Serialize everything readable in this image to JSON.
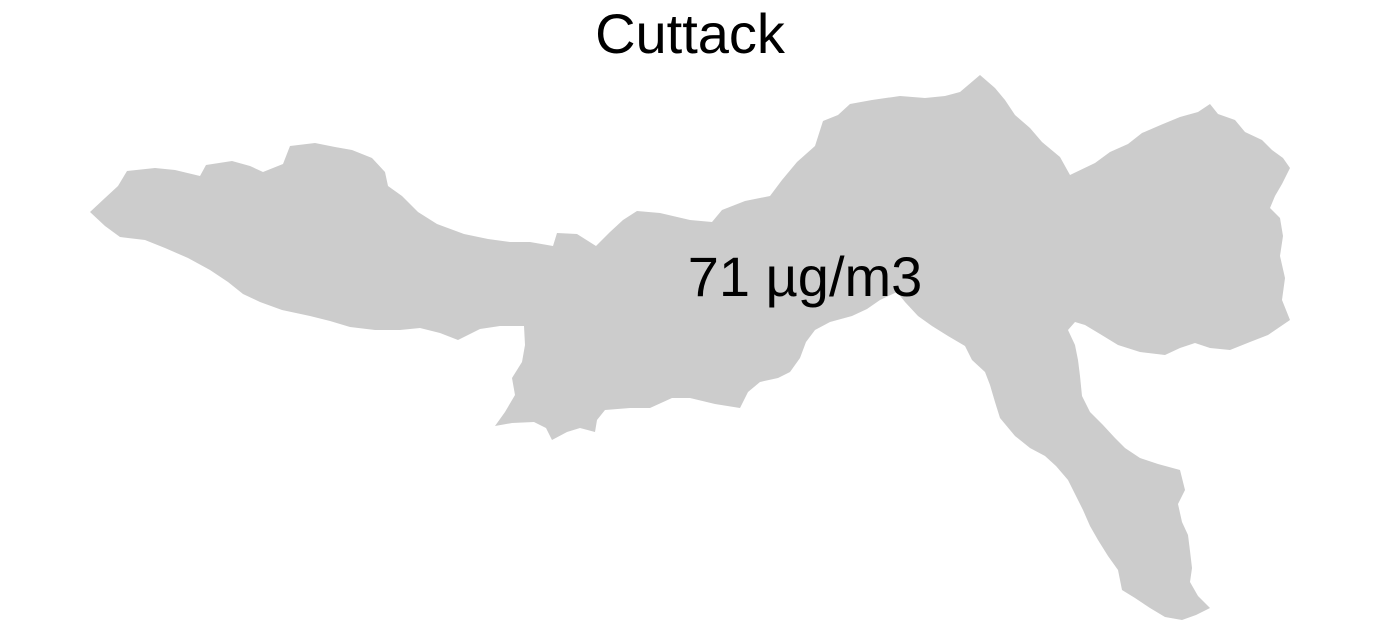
{
  "map": {
    "title": "Cuttack",
    "region_name": "Cuttack",
    "value_label": "71 µg/m3",
    "fill_color": "#cccccc",
    "text_color": "#000000",
    "background_color": "#ffffff"
  }
}
